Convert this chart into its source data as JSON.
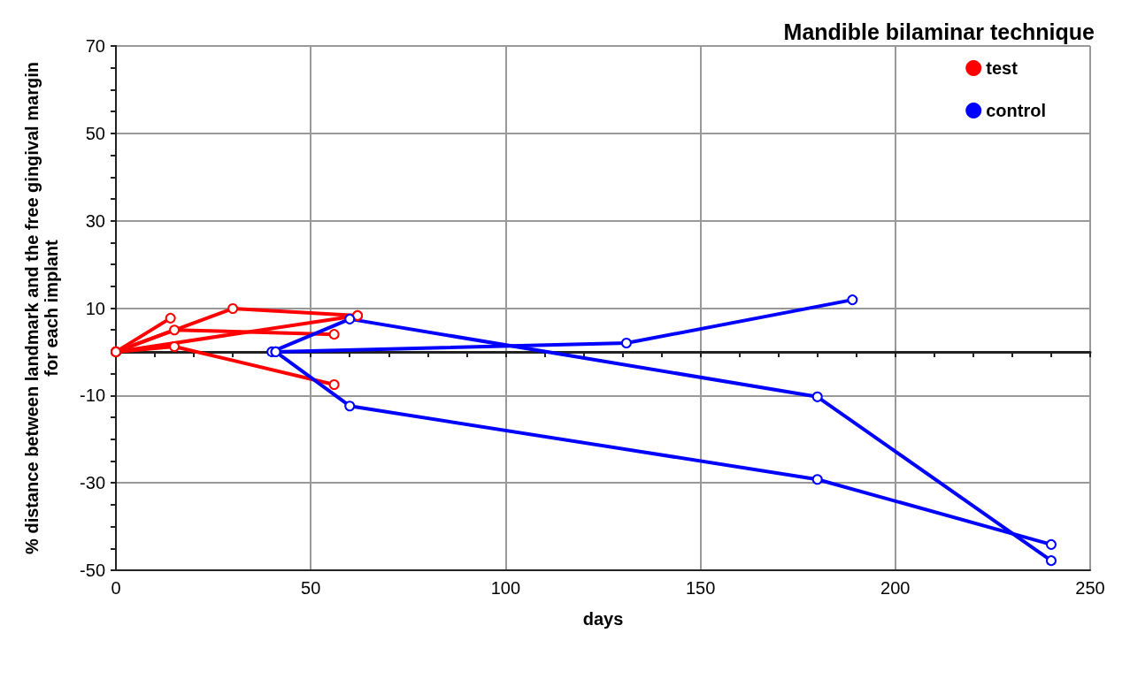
{
  "chart_data": {
    "type": "line",
    "title": "Mandible bilaminar technique",
    "xlabel": "days",
    "ylabel": "% distance between landmark and the free gingival margin\nfor each implant",
    "xlim": [
      0,
      250
    ],
    "xticks": [
      0,
      50,
      100,
      150,
      200,
      250
    ],
    "ylim": [
      -50,
      70
    ],
    "yticks": [
      -50,
      -30,
      -10,
      10,
      30,
      50,
      70
    ],
    "grid": true,
    "legend": "top right",
    "marker": "circle",
    "line_style": "solid",
    "series": [
      {
        "name": "test",
        "color": "#ff0000",
        "x": [
          0,
          14
        ],
        "values": [
          0,
          7.7
        ]
      },
      {
        "color": "#ff0000",
        "x": [
          0,
          15,
          56
        ],
        "values": [
          0,
          5.0,
          4.0
        ]
      },
      {
        "color": "#ff0000",
        "x": [
          0,
          30,
          62
        ],
        "values": [
          0,
          9.9,
          8.3
        ]
      },
      {
        "color": "#ff0000",
        "x": [
          0,
          62
        ],
        "values": [
          0,
          8.3
        ]
      },
      {
        "color": "#ff0000",
        "x": [
          0,
          15,
          56
        ],
        "values": [
          0,
          1.2,
          -7.5
        ]
      },
      {
        "name": "control",
        "color": "#0000ff",
        "x": [
          40,
          60,
          180,
          240
        ],
        "values": [
          0,
          7.5,
          -10.3,
          -47.8
        ]
      },
      {
        "color": "#0000ff",
        "x": [
          41,
          131,
          189
        ],
        "values": [
          0,
          2.0,
          11.9
        ]
      },
      {
        "color": "#0000ff",
        "x": [
          41,
          60,
          180,
          240
        ],
        "values": [
          0,
          -12.4,
          -29.2,
          -44.1
        ]
      }
    ]
  }
}
